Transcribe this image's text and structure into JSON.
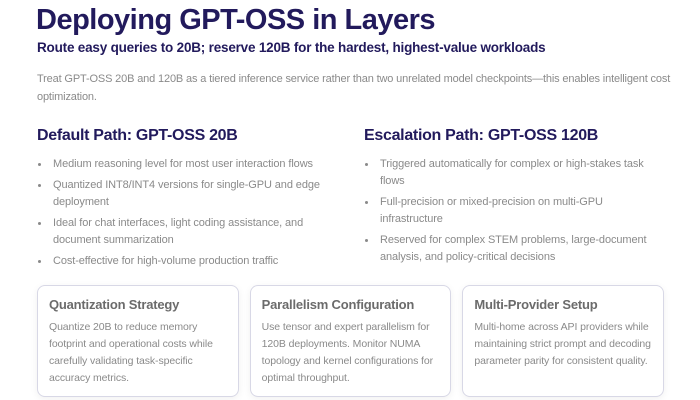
{
  "header": {
    "title": "Deploying GPT-OSS in Layers",
    "subtitle": "Route easy queries to 20B; reserve 120B for the hardest, highest-value workloads",
    "intro": "Treat GPT-OSS 20B and 120B as a tiered inference service rather than two unrelated model checkpoints—this enables intelligent cost optimization."
  },
  "columns": [
    {
      "title": "Default Path: GPT-OSS 20B",
      "bullets": [
        "Medium reasoning level for most user interaction flows",
        "Quantized INT8/INT4 versions for single-GPU and edge deployment",
        "Ideal for chat interfaces, light coding assistance, and document summarization",
        "Cost-effective for high-volume production traffic"
      ]
    },
    {
      "title": "Escalation Path: GPT-OSS 120B",
      "bullets": [
        "Triggered automatically for complex or high-stakes task flows",
        "Full-precision or mixed-precision on multi-GPU infrastructure",
        "Reserved for complex STEM problems, large-document analysis, and policy-critical decisions"
      ]
    }
  ],
  "cards": [
    {
      "title": "Quantization Strategy",
      "body": "Quantize 20B to reduce memory footprint and operational costs while carefully validating task-specific accuracy metrics."
    },
    {
      "title": "Parallelism Configuration",
      "body": "Use tensor and expert parallelism for 120B deployments. Monitor NUMA topology and kernel configurations for optimal throughput."
    },
    {
      "title": "Multi-Provider Setup",
      "body": "Multi-home across API providers while maintaining strict prompt and decoding parameter parity for consistent quality."
    }
  ],
  "colors": {
    "heading": "#221a5c",
    "body_text": "#8a8a8a",
    "card_title": "#6b6b6b",
    "card_border": "#d8d8e6"
  }
}
